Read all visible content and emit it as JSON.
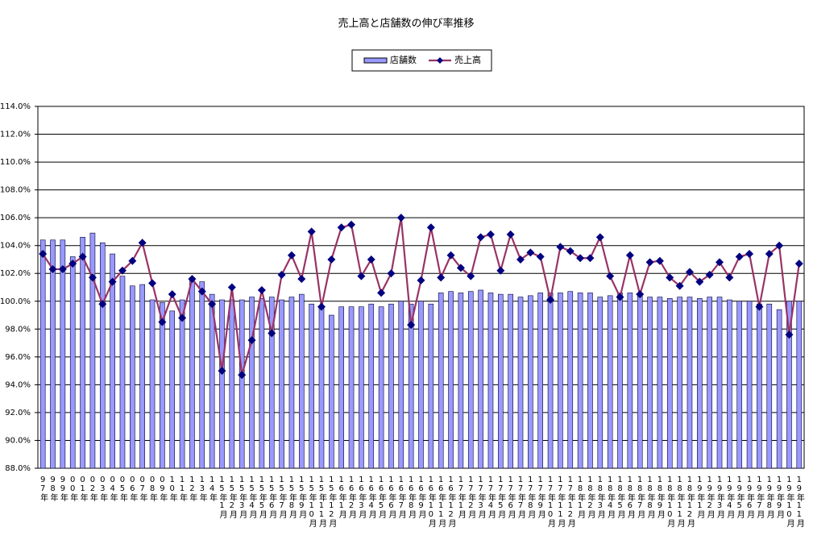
{
  "chart_data": {
    "type": "bar_line",
    "title": "売上高と店舗数の伸び率推移",
    "categories": [
      "97年",
      "98年",
      "99年",
      "00年",
      "01年",
      "02年",
      "03年",
      "04年",
      "05年",
      "06年",
      "07年",
      "08年",
      "09年",
      "10年",
      "11年",
      "12年",
      "13年",
      "14年",
      "15年1月",
      "15年2月",
      "15年3月",
      "15年4月",
      "15年5月",
      "15年6月",
      "15年7月",
      "15年8月",
      "15年9月",
      "15年10月",
      "15年11月",
      "15年12月",
      "16年1月",
      "16年2月",
      "16年3月",
      "16年4月",
      "16年5月",
      "16年6月",
      "16年7月",
      "16年8月",
      "16年9月",
      "16年10月",
      "16年11月",
      "16年12月",
      "17年1月",
      "17年2月",
      "17年3月",
      "17年4月",
      "17年5月",
      "17年6月",
      "17年7月",
      "17年8月",
      "17年9月",
      "17年10月",
      "17年11月",
      "17年12月",
      "18年1月",
      "18年2月",
      "18年3月",
      "18年4月",
      "18年5月",
      "18年6月",
      "18年7月",
      "18年8月",
      "18年9月",
      "18年10月",
      "18年11月",
      "18年12月",
      "19年1月",
      "19年2月",
      "19年3月",
      "19年4月",
      "19年5月",
      "19年6月",
      "19年7月",
      "19年8月",
      "19年9月",
      "19年10月",
      "19年11月"
    ],
    "series": [
      {
        "name": "店舗数",
        "type": "bar",
        "color": "#9999ff",
        "values": [
          104.4,
          104.4,
          104.4,
          103.2,
          104.6,
          104.9,
          104.2,
          103.4,
          101.8,
          101.1,
          101.2,
          100.1,
          99.9,
          99.3,
          100.1,
          101.7,
          101.4,
          100.5,
          100.1,
          100.1,
          100.1,
          100.3,
          100.2,
          100.3,
          100.1,
          100.3,
          100.5,
          99.8,
          99.6,
          99.0,
          99.6,
          99.6,
          99.6,
          99.8,
          99.6,
          99.8,
          100.0,
          99.8,
          100.0,
          99.8,
          100.6,
          100.7,
          100.6,
          100.7,
          100.8,
          100.6,
          100.5,
          100.5,
          100.3,
          100.4,
          100.6,
          100.6,
          100.6,
          100.7,
          100.6,
          100.6,
          100.3,
          100.4,
          100.6,
          100.6,
          100.6,
          100.3,
          100.3,
          100.2,
          100.3,
          100.3,
          100.2,
          100.3,
          100.3,
          100.1,
          100.0,
          100.0,
          99.8,
          99.8,
          99.4,
          100.0,
          100.0
        ]
      },
      {
        "name": "売上高",
        "type": "line",
        "color": "#993366",
        "marker_color": "#000080",
        "values": [
          103.4,
          102.3,
          102.3,
          102.7,
          103.2,
          101.7,
          99.8,
          101.4,
          102.2,
          102.9,
          104.2,
          101.3,
          98.5,
          100.5,
          98.8,
          101.6,
          100.7,
          99.8,
          95.0,
          101.0,
          94.7,
          97.2,
          100.8,
          97.7,
          101.9,
          103.3,
          101.6,
          105.0,
          99.6,
          103.0,
          105.3,
          105.5,
          101.8,
          103.0,
          100.6,
          102.0,
          106.0,
          98.3,
          101.5,
          105.3,
          101.7,
          103.3,
          102.4,
          101.8,
          104.6,
          104.8,
          102.2,
          104.8,
          103.0,
          103.5,
          103.2,
          100.1,
          103.9,
          103.6,
          103.1,
          103.1,
          104.6,
          101.8,
          100.3,
          103.3,
          100.5,
          102.8,
          102.9,
          101.7,
          101.1,
          102.1,
          101.4,
          101.9,
          102.8,
          101.7,
          103.2,
          103.4,
          99.6,
          103.4,
          104.0,
          97.6,
          102.7
        ]
      }
    ],
    "ylim": [
      88,
      114
    ],
    "yticks": [
      {
        "value": 88,
        "label": "88.0%"
      },
      {
        "value": 90,
        "label": "90.0%"
      },
      {
        "value": 92,
        "label": "92.0%"
      },
      {
        "value": 94,
        "label": "94.0%"
      },
      {
        "value": 96,
        "label": "96.0%"
      },
      {
        "value": 98,
        "label": "98.0%"
      },
      {
        "value": 100,
        "label": "100.0%"
      },
      {
        "value": 102,
        "label": "102.0%"
      },
      {
        "value": 104,
        "label": "104.0%"
      },
      {
        "value": 106,
        "label": "106.0%"
      },
      {
        "value": 108,
        "label": "108.0%"
      },
      {
        "value": 110,
        "label": "110.0%"
      },
      {
        "value": 112,
        "label": "112.0%"
      },
      {
        "value": 114,
        "label": "114.0%"
      }
    ],
    "grid": true,
    "legend": "top"
  }
}
